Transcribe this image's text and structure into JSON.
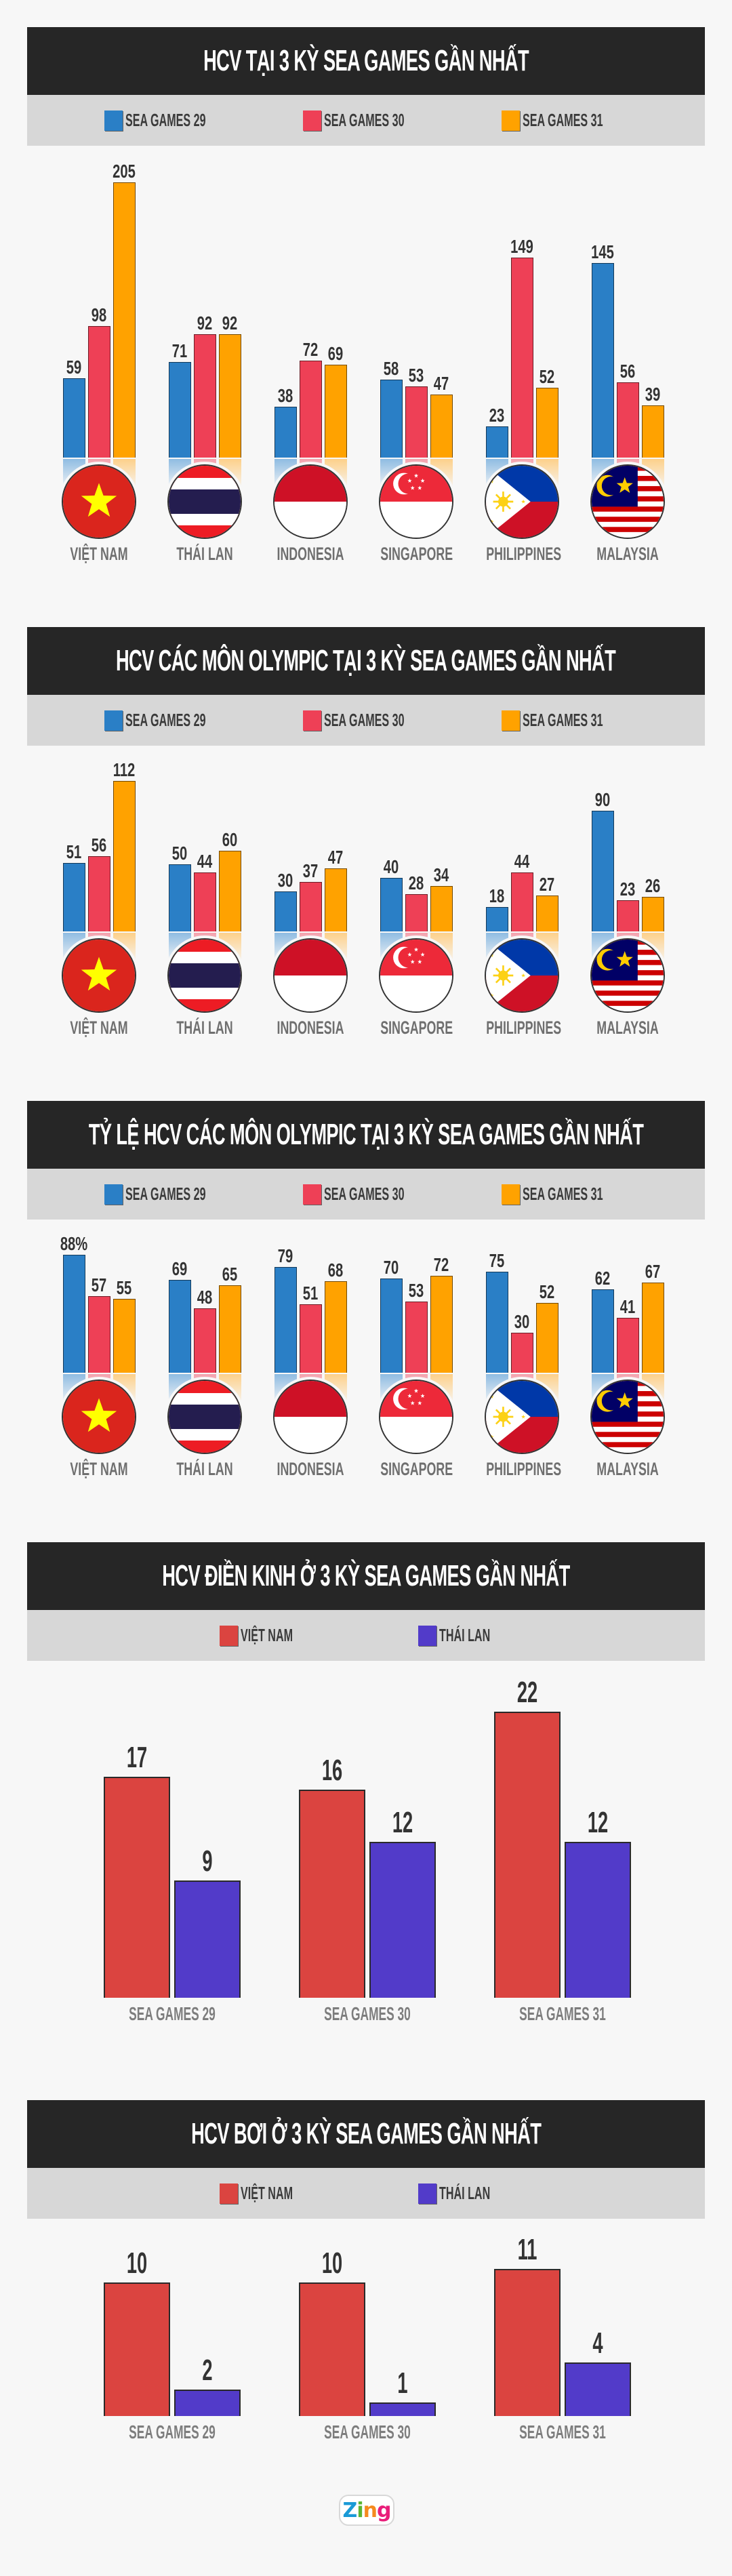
{
  "colors": {
    "sg29": "#2a7fc6",
    "sg30": "#ee4056",
    "sg31": "#ffa200",
    "sg29_fade": "#8fbce2",
    "sg30_fade": "#f4a2ad",
    "sg31_fade": "#fdd08a",
    "vietnam": "#db4440",
    "thailand": "#523bc9",
    "header_bg": "#262626",
    "legend_bg": "#d7d7d7"
  },
  "sections": [
    {
      "title": "HCV TẠI 3 KỲ SEA GAMES GẦN NHẤT",
      "legend": [
        "SEA GAMES 29",
        "SEA GAMES 30",
        "SEA GAMES 31"
      ]
    },
    {
      "title": "HCV CÁC MÔN OLYMPIC TẠI 3 KỲ SEA GAMES GẦN NHẤT",
      "legend": [
        "SEA GAMES 29",
        "SEA GAMES 30",
        "SEA GAMES 31"
      ]
    },
    {
      "title": "TỶ LỆ HCV CÁC MÔN OLYMPIC TẠI 3 KỲ SEA GAMES GẦN NHẤT",
      "legend": [
        "SEA GAMES 29",
        "SEA GAMES 30",
        "SEA GAMES 31"
      ]
    },
    {
      "title": "HCV ĐIỀN KINH Ở 3 KỲ SEA GAMES GẦN NHẤT",
      "legend": [
        "VIỆT NAM",
        "THÁI LAN"
      ]
    },
    {
      "title": "HCV BƠI Ở 3 KỲ SEA GAMES GẦN NHẤT",
      "legend": [
        "VIỆT NAM",
        "THÁI LAN"
      ]
    }
  ],
  "countries": [
    "VIỆT NAM",
    "THÁI LAN",
    "INDONESIA",
    "SINGAPORE",
    "PHILIPPINES",
    "MALAYSIA"
  ],
  "flags": [
    "vietnam-flag",
    "thailand-flag",
    "indonesia-flag",
    "singapore-flag",
    "philippines-flag",
    "malaysia-flag"
  ],
  "chart_data": [
    {
      "type": "bar",
      "title": "HCV TẠI 3 KỲ SEA GAMES GẦN NHẤT",
      "categories": [
        "VIỆT NAM",
        "THÁI LAN",
        "INDONESIA",
        "SINGAPORE",
        "PHILIPPINES",
        "MALAYSIA"
      ],
      "series": [
        {
          "name": "SEA GAMES 29",
          "values": [
            59,
            71,
            38,
            58,
            23,
            145
          ]
        },
        {
          "name": "SEA GAMES 30",
          "values": [
            98,
            92,
            72,
            53,
            149,
            56
          ]
        },
        {
          "name": "SEA GAMES 31",
          "values": [
            205,
            92,
            69,
            47,
            52,
            39
          ]
        }
      ],
      "labels": [
        [
          "59",
          "98",
          "205"
        ],
        [
          "71",
          "92",
          "92"
        ],
        [
          "38",
          "72",
          "69"
        ],
        [
          "58",
          "53",
          "47"
        ],
        [
          "23",
          "149",
          "52"
        ],
        [
          "145",
          "56",
          "39"
        ]
      ],
      "legend_position": "top",
      "grid": false
    },
    {
      "type": "bar",
      "title": "HCV CÁC MÔN OLYMPIC TẠI 3 KỲ SEA GAMES GẦN NHẤT",
      "categories": [
        "VIỆT NAM",
        "THÁI LAN",
        "INDONESIA",
        "SINGAPORE",
        "PHILIPPINES",
        "MALAYSIA"
      ],
      "series": [
        {
          "name": "SEA GAMES 29",
          "values": [
            51,
            50,
            30,
            40,
            18,
            90
          ]
        },
        {
          "name": "SEA GAMES 30",
          "values": [
            56,
            44,
            37,
            28,
            44,
            23
          ]
        },
        {
          "name": "SEA GAMES 31",
          "values": [
            112,
            60,
            47,
            34,
            27,
            26
          ]
        }
      ],
      "labels": [
        [
          "51",
          "56",
          "112"
        ],
        [
          "50",
          "44",
          "60"
        ],
        [
          "30",
          "37",
          "47"
        ],
        [
          "40",
          "28",
          "34"
        ],
        [
          "18",
          "44",
          "27"
        ],
        [
          "90",
          "23",
          "26"
        ]
      ],
      "legend_position": "top",
      "grid": false
    },
    {
      "type": "bar",
      "title": "TỶ LỆ HCV CÁC MÔN OLYMPIC TẠI 3 KỲ SEA GAMES GẦN NHẤT",
      "categories": [
        "VIỆT NAM",
        "THÁI LAN",
        "INDONESIA",
        "SINGAPORE",
        "PHILIPPINES",
        "MALAYSIA"
      ],
      "unit": "%",
      "series": [
        {
          "name": "SEA GAMES 29",
          "values": [
            88,
            69,
            79,
            70,
            75,
            62
          ]
        },
        {
          "name": "SEA GAMES 30",
          "values": [
            57,
            48,
            51,
            53,
            30,
            41
          ]
        },
        {
          "name": "SEA GAMES 31",
          "values": [
            55,
            65,
            68,
            72,
            52,
            67
          ]
        }
      ],
      "labels": [
        [
          "88%",
          "57",
          "55"
        ],
        [
          "69",
          "48",
          "65"
        ],
        [
          "79",
          "51",
          "68"
        ],
        [
          "70",
          "53",
          "72"
        ],
        [
          "75",
          "30",
          "52"
        ],
        [
          "62",
          "41",
          "67"
        ]
      ],
      "legend_position": "top",
      "grid": false
    },
    {
      "type": "bar",
      "title": "HCV ĐIỀN KINH Ở 3 KỲ SEA GAMES GẦN NHẤT",
      "categories": [
        "SEA GAMES 29",
        "SEA GAMES 30",
        "SEA GAMES 31"
      ],
      "series": [
        {
          "name": "VIỆT NAM",
          "values": [
            17,
            16,
            22
          ]
        },
        {
          "name": "THÁI LAN",
          "values": [
            9,
            12,
            12
          ]
        }
      ],
      "legend_position": "top",
      "grid": false
    },
    {
      "type": "bar",
      "title": "HCV BƠI Ở 3 KỲ SEA GAMES GẦN NHẤT",
      "categories": [
        "SEA GAMES 29",
        "SEA GAMES 30",
        "SEA GAMES 31"
      ],
      "series": [
        {
          "name": "VIỆT NAM",
          "values": [
            10,
            10,
            11
          ]
        },
        {
          "name": "THÁI LAN",
          "values": [
            2,
            1,
            4
          ]
        }
      ],
      "legend_position": "top",
      "grid": false
    }
  ],
  "footer": {
    "logo_letters": [
      "Z",
      "i",
      "n",
      "g"
    ],
    "logo_colors": [
      "#1a9ad6",
      "#5cb531",
      "#f58a1f",
      "#e91e7a"
    ]
  }
}
